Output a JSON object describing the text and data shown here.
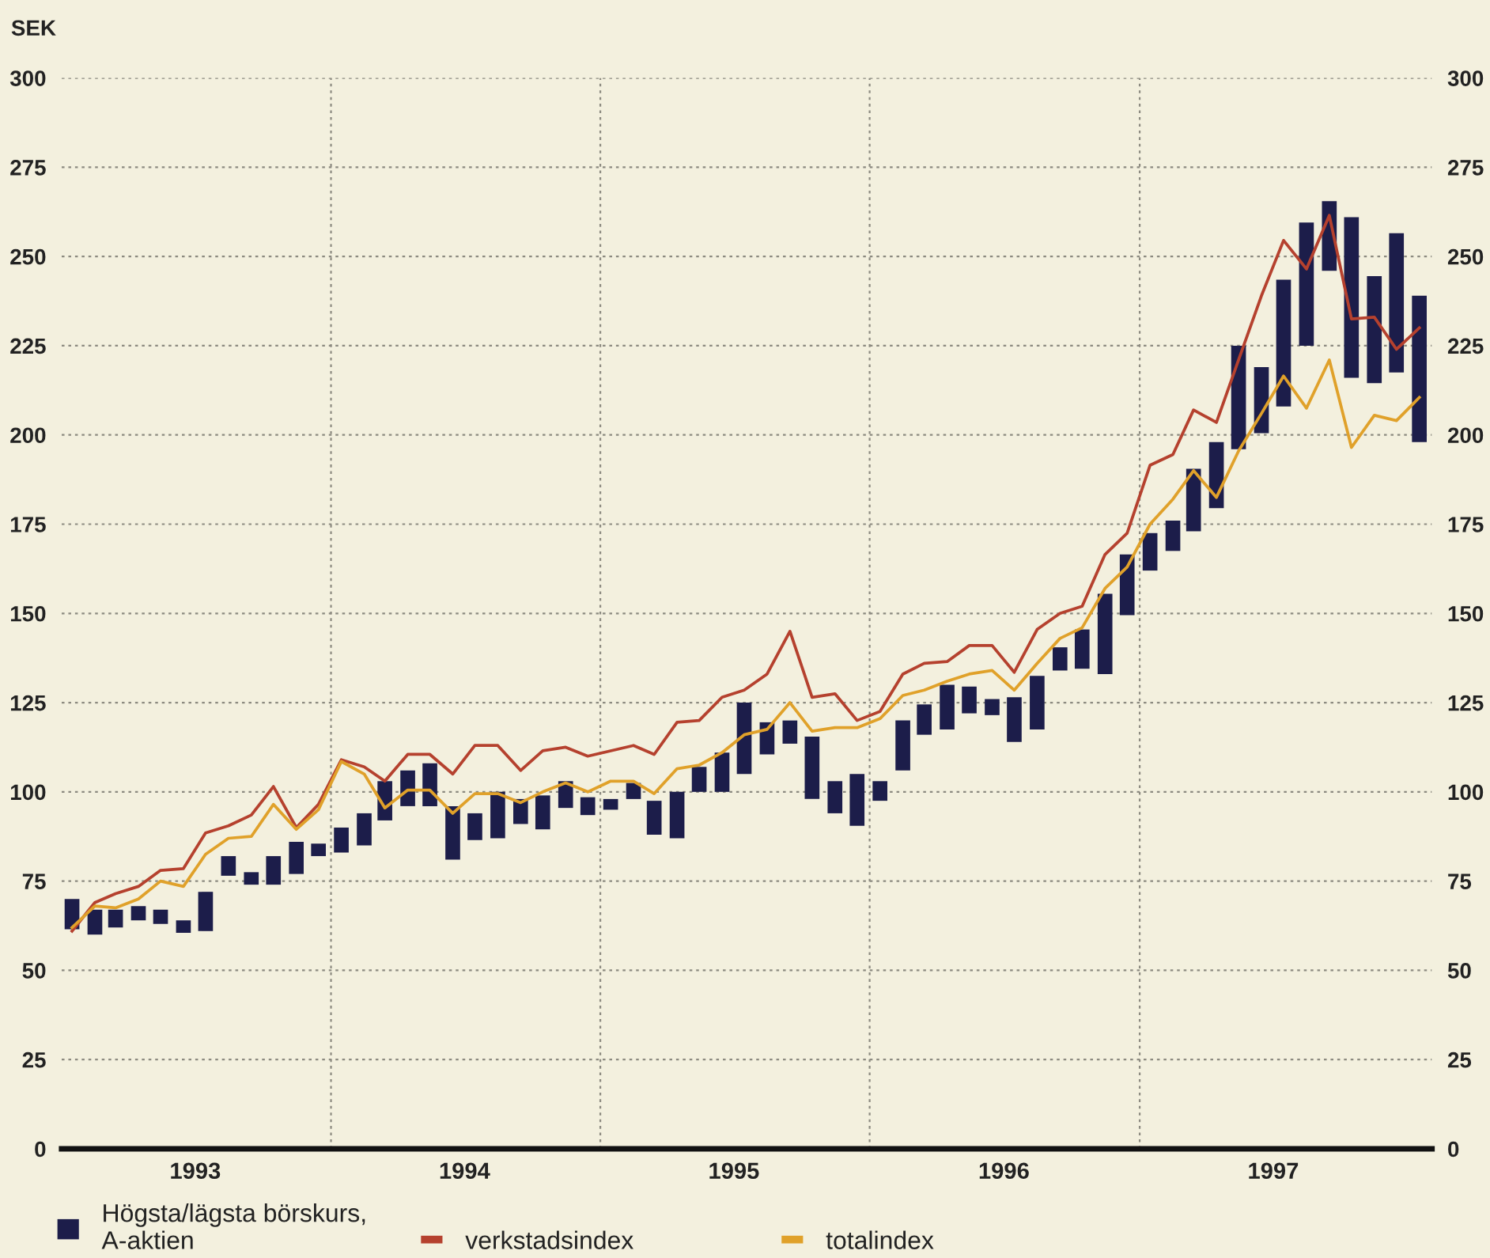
{
  "chart_data": {
    "type": "bar",
    "ylabel": "SEK",
    "x": [
      "1993-01-15",
      "1993-02-15",
      "1993-03-15",
      "1993-04-15",
      "1993-05-15",
      "1993-06-15",
      "1993-07-15",
      "1993-08-15",
      "1993-09-15",
      "1993-10-15",
      "1993-11-15",
      "1993-12-15",
      "1994-01-15",
      "1994-02-15",
      "1994-03-15",
      "1994-04-15",
      "1994-05-15",
      "1994-06-15",
      "1994-07-15",
      "1994-08-15",
      "1994-09-15",
      "1994-10-15",
      "1994-11-15",
      "1994-12-15",
      "1995-01-15",
      "1995-02-15",
      "1995-03-15",
      "1995-04-15",
      "1995-05-15",
      "1995-06-15",
      "1995-07-15",
      "1995-08-15",
      "1995-09-15",
      "1995-10-15",
      "1995-11-15",
      "1995-12-15",
      "1996-01-15",
      "1996-02-15",
      "1996-03-15",
      "1996-04-15",
      "1996-05-15",
      "1996-06-15",
      "1996-07-15",
      "1996-08-15",
      "1996-09-15",
      "1996-10-15",
      "1996-11-15",
      "1996-12-15",
      "1997-01-15",
      "1997-02-15",
      "1997-03-15",
      "1997-04-15",
      "1997-05-15",
      "1997-06-15",
      "1997-07-15",
      "1997-08-15",
      "1997-09-15",
      "1997-10-15",
      "1997-11-15",
      "1997-12-15",
      "1998-01-15"
    ],
    "xlim": [
      "1993-01-01",
      "1998-02-01"
    ],
    "xticks": [
      {
        "value": "1993-07-01",
        "label": "1993"
      },
      {
        "value": "1994-07-01",
        "label": "1994"
      },
      {
        "value": "1995-07-01",
        "label": "1995"
      },
      {
        "value": "1996-07-01",
        "label": "1996"
      },
      {
        "value": "1997-07-01",
        "label": "1997"
      }
    ],
    "ylim": [
      0,
      300
    ],
    "yticks": [
      0,
      25,
      50,
      75,
      100,
      125,
      150,
      175,
      200,
      225,
      250,
      275,
      300
    ],
    "y2lim": [
      0,
      300
    ],
    "y2ticks": [
      0,
      25,
      50,
      75,
      100,
      125,
      150,
      175,
      200,
      225,
      250,
      275,
      300
    ],
    "grid": "y",
    "ref_lines": [
      {
        "axis": "x",
        "value": "1994-01-01",
        "line_style": "dotted",
        "color": "#8c8a80"
      },
      {
        "axis": "x",
        "value": "1995-01-01",
        "line_style": "dotted",
        "color": "#8c8a80"
      },
      {
        "axis": "x",
        "value": "1996-01-01",
        "line_style": "dotted",
        "color": "#8c8a80"
      },
      {
        "axis": "x",
        "value": "1997-01-01",
        "line_style": "dotted",
        "color": "#8c8a80"
      }
    ],
    "legend": "bottom",
    "series": [
      {
        "name": "Högsta/lägsta börskurs,\nA-aktien",
        "color": "#1c1d4a",
        "base": [
          61.5,
          60,
          62,
          64,
          63,
          60.5,
          61,
          76.5,
          74,
          74,
          77,
          82,
          83,
          85,
          92,
          96,
          96,
          81,
          86.5,
          87,
          91,
          89.5,
          95.5,
          93.5,
          95,
          98,
          88,
          87,
          100,
          100,
          105,
          110.5,
          113.5,
          98,
          94,
          90.5,
          97.5,
          106,
          116,
          117.5,
          122,
          121.5,
          114,
          117.5,
          134,
          134.5,
          133,
          149.5,
          162,
          167.5,
          173,
          179.5,
          196,
          200.5,
          208,
          225,
          246,
          216,
          214.5,
          217.5,
          198
        ],
        "values": [
          8.5,
          7,
          5,
          4,
          4,
          3.5,
          11,
          5.5,
          3.5,
          8,
          9,
          3.5,
          7,
          9,
          11,
          10,
          12,
          15,
          7.5,
          13,
          7,
          9.5,
          7.5,
          5,
          3,
          4.5,
          9.5,
          13,
          7,
          11,
          20,
          9,
          6.5,
          17.5,
          9,
          14.5,
          5.5,
          14,
          8.5,
          12.5,
          7.5,
          4.5,
          12.5,
          15,
          6.5,
          11,
          22.5,
          17,
          10.5,
          8.5,
          17.5,
          18.5,
          29,
          18.5,
          35.5,
          34.5,
          19.5,
          45,
          30,
          39,
          41
        ]
      },
      {
        "name": "verkstadsindex",
        "type": "line",
        "color": "#b5412e",
        "values": [
          61,
          69,
          71.5,
          73.5,
          78,
          78.5,
          88.5,
          90.5,
          93.5,
          101.5,
          90,
          96.5,
          109,
          107,
          103,
          110.5,
          110.5,
          105,
          113,
          113,
          106,
          111.5,
          112.5,
          110,
          111.5,
          113,
          110.5,
          119.5,
          120,
          126.5,
          128.5,
          133,
          145,
          126.5,
          127.5,
          120,
          122.5,
          133,
          136,
          136.5,
          141,
          141,
          133.5,
          145.5,
          150,
          152,
          166.5,
          172.5,
          191.5,
          194.5,
          207,
          203.5,
          221,
          239,
          254.5,
          246.5,
          261.5,
          232.5,
          233,
          224,
          230
        ]
      },
      {
        "name": "totalindex",
        "type": "line",
        "color": "#e0a12a",
        "values": [
          62,
          68,
          67.5,
          70,
          75,
          73.5,
          82.5,
          87,
          87.5,
          96.5,
          89.5,
          95,
          108.5,
          105,
          95.5,
          100.5,
          100.5,
          94,
          99.5,
          99.5,
          97,
          100,
          102.5,
          100,
          103,
          103,
          99.5,
          106.5,
          107.5,
          111,
          116,
          117.5,
          125,
          117,
          118,
          118,
          120.5,
          127,
          128.5,
          131,
          133,
          134,
          128.5,
          136,
          143,
          146,
          157,
          163,
          175,
          182,
          190,
          182.5,
          195.5,
          206,
          216.5,
          207.5,
          221,
          196.5,
          205.5,
          204,
          210.5
        ]
      }
    ]
  }
}
